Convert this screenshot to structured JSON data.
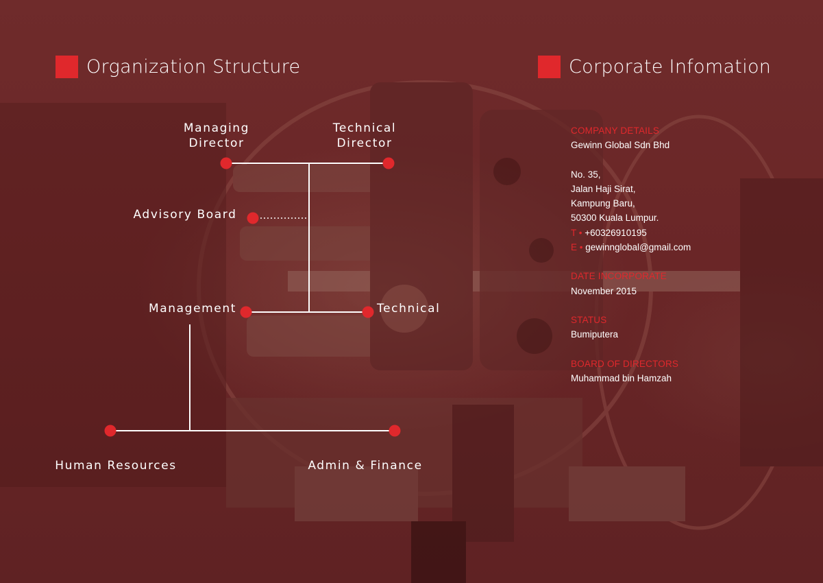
{
  "org_section": {
    "title": "Organization Structure",
    "nodes": {
      "managing_director": "Managing\nDirector",
      "technical_director": "Technical\nDirector",
      "advisory_board": "Advisory Board",
      "management": "Management",
      "technical": "Technical",
      "human_resources": "Human Resources",
      "admin_finance": "Admin & Finance"
    }
  },
  "corporate_section": {
    "title": "Corporate Infomation",
    "company_details_label": "COMPANY DETAILS",
    "company_name": "Gewinn Global Sdn Bhd",
    "address": [
      "No. 35,",
      "Jalan Haji Sirat,",
      "Kampung Baru,",
      "50300 Kuala Lumpur."
    ],
    "phone_prefix": "T",
    "phone": "+60326910195",
    "email_prefix": "E",
    "email": "gewinnglobal@gmail.com",
    "date_label": "DATE INCORPORATE",
    "date": "November 2015",
    "status_label": "STATUS",
    "status": "Bumiputera",
    "board_label": "BOARD OF DIRECTORS",
    "board": "Muhammad bin Hamzah"
  },
  "colors": {
    "accent": "#e0282c",
    "background": "#6a2627",
    "line": "#ffffff"
  }
}
